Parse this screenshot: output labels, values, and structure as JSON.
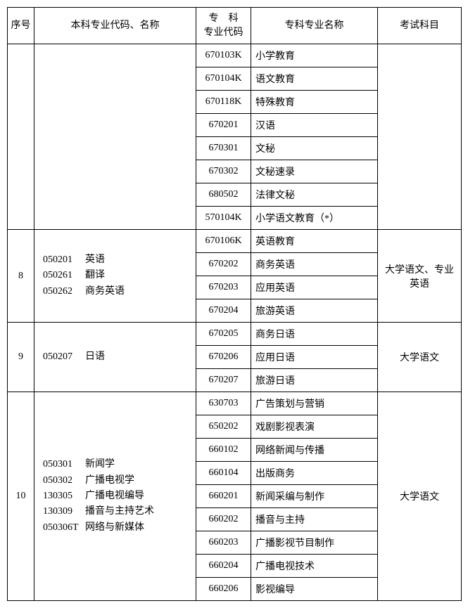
{
  "columns": {
    "col1": "序号",
    "col2": "本科专业代码、名称",
    "col3": "专　科\n专业代码",
    "col4": "专科专业名称",
    "col5": "考试科目"
  },
  "rows": [
    {
      "idx": "",
      "majors": [],
      "code": "670103K",
      "name": "小学教育",
      "exam": ""
    },
    {
      "code": "670104K",
      "name": "语文教育"
    },
    {
      "code": "670118K",
      "name": "特殊教育"
    },
    {
      "code": "670201",
      "name": "汉语"
    },
    {
      "code": "670301",
      "name": "文秘"
    },
    {
      "code": "670302",
      "name": "文秘速录"
    },
    {
      "code": "680502",
      "name": "法律文秘"
    },
    {
      "code": "570104K",
      "name": "小学语文教育（*）"
    },
    {
      "idx": "8",
      "majors": [
        {
          "c": "050201",
          "n": "英语"
        },
        {
          "c": "050261",
          "n": "翻译"
        },
        {
          "c": "050262",
          "n": "商务英语"
        }
      ],
      "code": "670106K",
      "name": "英语教育",
      "exam": "大学语文、专业英语"
    },
    {
      "code": "670202",
      "name": "商务英语"
    },
    {
      "code": "670203",
      "name": "应用英语"
    },
    {
      "code": "670204",
      "name": "旅游英语"
    },
    {
      "idx": "9",
      "majors": [
        {
          "c": "050207",
          "n": "日语"
        }
      ],
      "code": "670205",
      "name": "商务日语",
      "exam": "大学语文"
    },
    {
      "code": "670206",
      "name": "应用日语"
    },
    {
      "code": "670207",
      "name": "旅游日语"
    },
    {
      "idx": "10",
      "majors": [
        {
          "c": "050301",
          "n": "新闻学"
        },
        {
          "c": "050302",
          "n": "广播电视学"
        },
        {
          "c": "130305",
          "n": "广播电视编导"
        },
        {
          "c": "130309",
          "n": "播音与主持艺术"
        },
        {
          "c": "050306T",
          "n": "网络与新媒体"
        }
      ],
      "code": "630703",
      "name": "广告策划与营销",
      "exam": "大学语文"
    },
    {
      "code": "650202",
      "name": "戏剧影视表演"
    },
    {
      "code": "660102",
      "name": "网络新闻与传播"
    },
    {
      "code": "660104",
      "name": "出版商务"
    },
    {
      "code": "660201",
      "name": "新闻采编与制作"
    },
    {
      "code": "660202",
      "name": "播音与主持"
    },
    {
      "code": "660203",
      "name": "广播影视节目制作"
    },
    {
      "code": "660204",
      "name": "广播电视技术"
    },
    {
      "code": "660206",
      "name": "影视编导"
    }
  ],
  "groups": [
    {
      "start": 0,
      "span": 8
    },
    {
      "start": 8,
      "span": 4
    },
    {
      "start": 12,
      "span": 3
    },
    {
      "start": 15,
      "span": 9
    }
  ],
  "style": {
    "border_color": "#000000",
    "font_family": "SimSun",
    "header_fontsize": 14,
    "cell_fontsize": 14,
    "background": "#ffffff",
    "text_color": "#000000"
  }
}
